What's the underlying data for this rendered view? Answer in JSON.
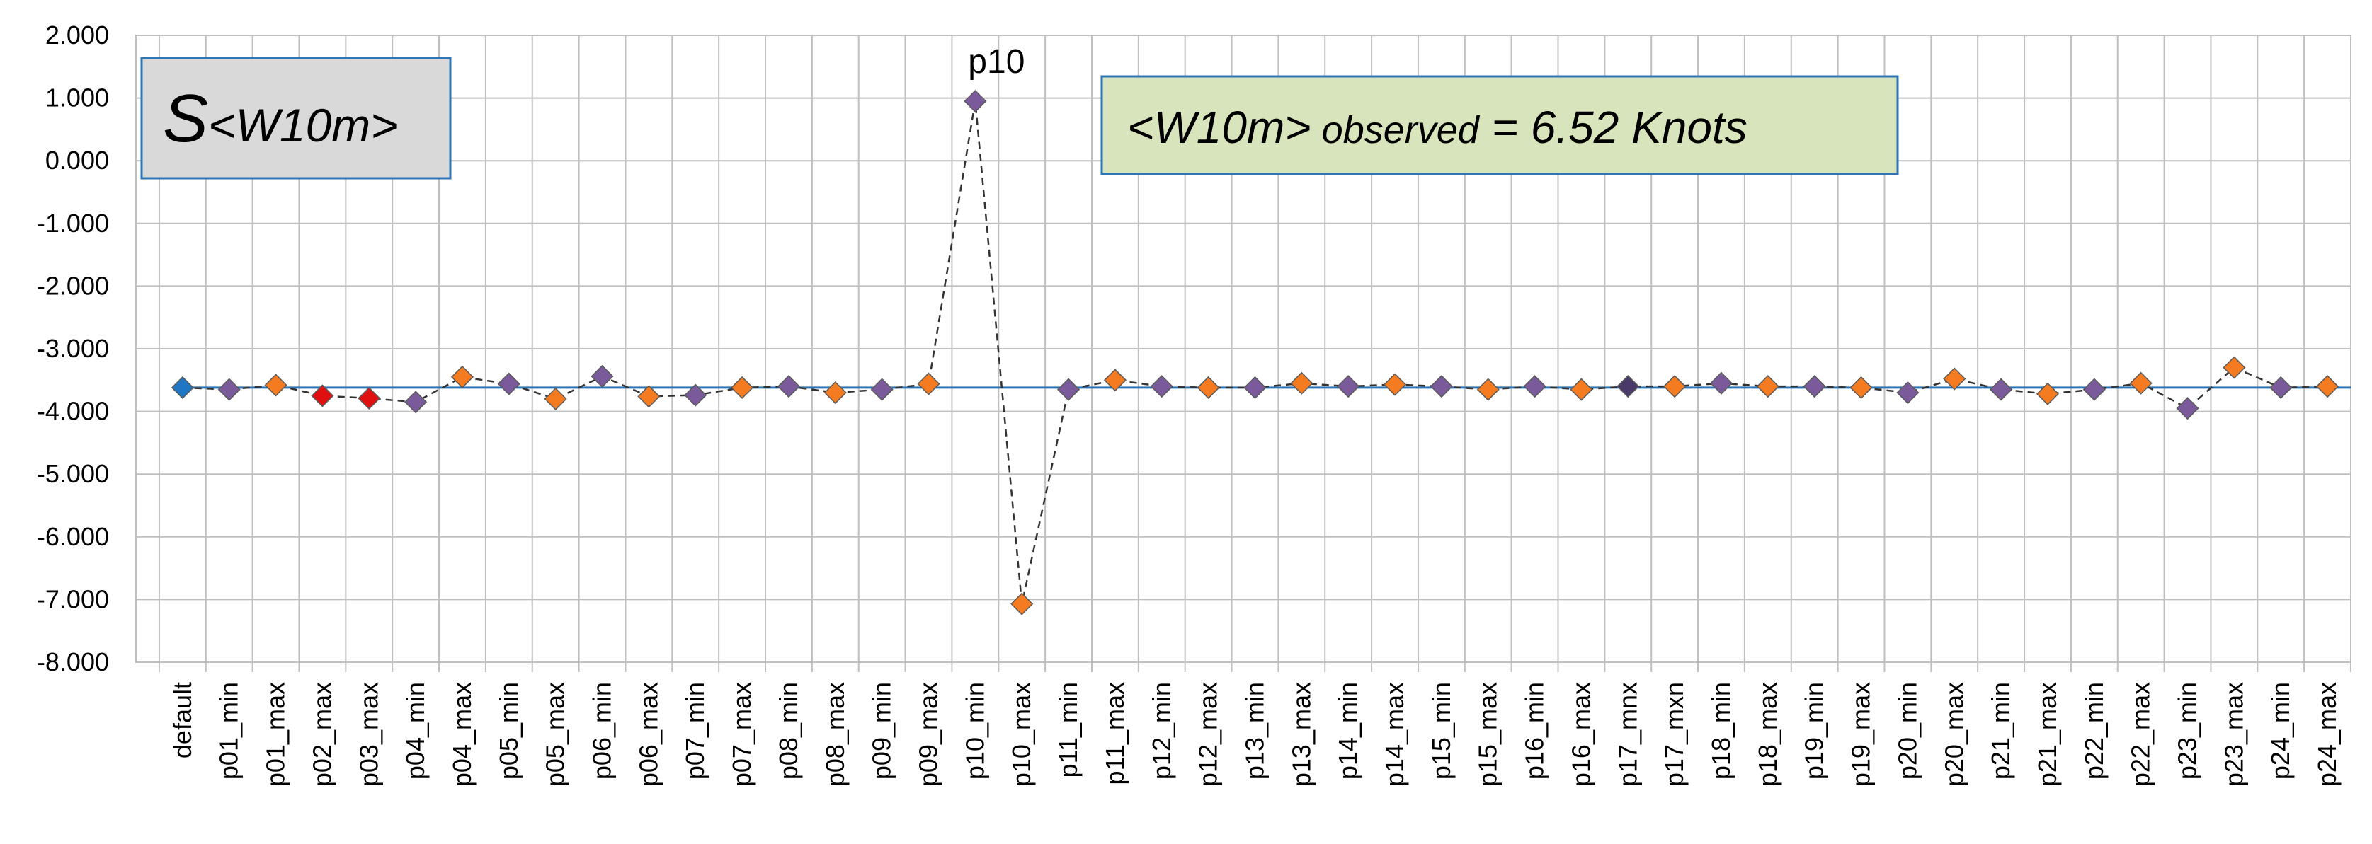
{
  "chart_data": {
    "type": "scatter",
    "title": "",
    "xlabel": "",
    "ylabel": "",
    "ylim": [
      -8,
      2
    ],
    "yticks": [
      "2.000",
      "1.000",
      "0.000",
      "-1.000",
      "-2.000",
      "-3.000",
      "-4.000",
      "-5.000",
      "-6.000",
      "-7.000",
      "-8.000"
    ],
    "ytick_values": [
      2,
      1,
      0,
      -1,
      -2,
      -3,
      -4,
      -5,
      -6,
      -7,
      -8
    ],
    "grid": true,
    "categories": [
      "default",
      "p01_min",
      "p01_max",
      "p02_max",
      "p03_max",
      "p04_min",
      "p04_max",
      "p05_min",
      "p05_max",
      "p06_min",
      "p06_max",
      "p07_min",
      "p07_max",
      "p08_min",
      "p08_max",
      "p09_min",
      "p09_max",
      "p10_min",
      "p10_max",
      "p11_min",
      "p11_max",
      "p12_min",
      "p12_max",
      "p13_min",
      "p13_max",
      "p14_min",
      "p14_max",
      "p15_min",
      "p15_max",
      "p16_min",
      "p16_max",
      "p17_mnx",
      "p17_mxn",
      "p18_min",
      "p18_max",
      "p19_min",
      "p19_max",
      "p20_min",
      "p20_max",
      "p21_min",
      "p21_max",
      "p22_min",
      "p22_max",
      "p23_min",
      "p23_max",
      "p24_min",
      "p24_max"
    ],
    "values": [
      -3.62,
      -3.65,
      -3.58,
      -3.75,
      -3.79,
      -3.85,
      -3.45,
      -3.56,
      -3.8,
      -3.44,
      -3.76,
      -3.74,
      -3.62,
      -3.6,
      -3.7,
      -3.65,
      -3.56,
      0.95,
      -7.07,
      -3.65,
      -3.5,
      -3.6,
      -3.62,
      -3.62,
      -3.55,
      -3.6,
      -3.57,
      -3.6,
      -3.65,
      -3.6,
      -3.65,
      -3.6,
      -3.6,
      -3.55,
      -3.6,
      -3.6,
      -3.62,
      -3.7,
      -3.48,
      -3.65,
      -3.72,
      -3.65,
      -3.55,
      -3.95,
      -3.3,
      -3.62,
      -3.6
    ],
    "marker_colors": [
      "#1f77c4",
      "#7a5a9a",
      "#f47b20",
      "#e01010",
      "#e01010",
      "#7a5a9a",
      "#f47b20",
      "#7a5a9a",
      "#f47b20",
      "#7a5a9a",
      "#f47b20",
      "#7a5a9a",
      "#f47b20",
      "#7a5a9a",
      "#f47b20",
      "#7a5a9a",
      "#f47b20",
      "#7a5a9a",
      "#f47b20",
      "#7a5a9a",
      "#f47b20",
      "#7a5a9a",
      "#f47b20",
      "#7a5a9a",
      "#f47b20",
      "#7a5a9a",
      "#f47b20",
      "#7a5a9a",
      "#f47b20",
      "#7a5a9a",
      "#f47b20",
      "#4a3a6a",
      "#f47b20",
      "#7a5a9a",
      "#f47b20",
      "#7a5a9a",
      "#f47b20",
      "#7a5a9a",
      "#f47b20",
      "#7a5a9a",
      "#f47b20",
      "#7a5a9a",
      "#f47b20",
      "#7a5a9a",
      "#f47b20",
      "#7a5a9a",
      "#f47b20"
    ],
    "reference_line": {
      "value": -3.62,
      "color": "#2e75b6"
    },
    "series_line_color": "#333333",
    "annotation": {
      "text": "p10",
      "category": "p10_min"
    },
    "legend_box": {
      "main": "S",
      "sub": "<W10m>"
    },
    "observed_box": {
      "prefix": "<W10m>",
      "middle": " observed",
      "suffix": " = 6.52 Knots"
    }
  }
}
